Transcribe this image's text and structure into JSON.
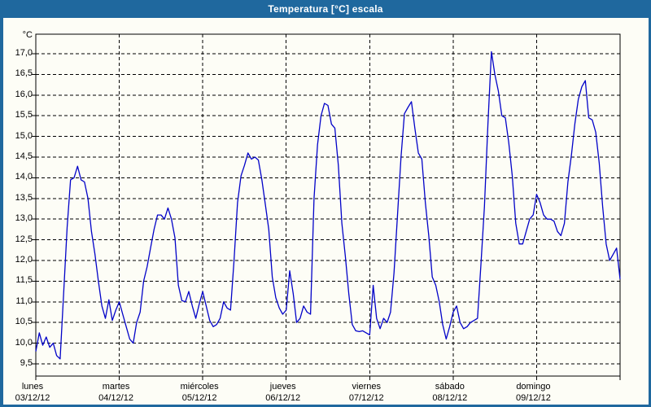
{
  "window": {
    "title": "Temperatura [°C] escala"
  },
  "chart_data": {
    "type": "line",
    "title": "Temperatura [°C] escala",
    "ylabel": "°C",
    "grid": true,
    "legend_position": "none",
    "y_axis": {
      "min": 9.5,
      "max": 17.0,
      "step": 0.5,
      "tick_labels": [
        "17,0",
        "16,5",
        "16,0",
        "15,5",
        "15,0",
        "14,5",
        "14,0",
        "13,5",
        "13,0",
        "12,5",
        "12,0",
        "11,5",
        "11,0",
        "10,5",
        "10,0",
        "9,5"
      ]
    },
    "x_axis": {
      "days": [
        {
          "name": "lunes",
          "date": "03/12/12"
        },
        {
          "name": "martes",
          "date": "04/12/12"
        },
        {
          "name": "miércoles",
          "date": "05/12/12"
        },
        {
          "name": "jueves",
          "date": "06/12/12"
        },
        {
          "name": "viernes",
          "date": "07/12/12"
        },
        {
          "name": "sábado",
          "date": "08/12/12"
        },
        {
          "name": "domingo",
          "date": "09/12/12"
        }
      ]
    },
    "series": [
      {
        "name": "Temperatura",
        "unit": "°C",
        "color": "#0202c8",
        "sampling": "hourly",
        "values": [
          9.8,
          10.25,
          9.95,
          10.15,
          9.9,
          10.0,
          9.7,
          9.62,
          11.2,
          12.8,
          13.95,
          14.0,
          14.28,
          13.95,
          13.9,
          13.5,
          12.7,
          12.15,
          11.5,
          10.9,
          10.6,
          11.05,
          10.55,
          10.8,
          11.0,
          10.7,
          10.4,
          10.1,
          10.0,
          10.5,
          10.75,
          11.5,
          11.85,
          12.3,
          12.75,
          13.1,
          13.1,
          13.0,
          13.27,
          13.0,
          12.55,
          11.4,
          11.03,
          11.0,
          11.25,
          10.9,
          10.6,
          10.95,
          11.25,
          10.9,
          10.55,
          10.4,
          10.45,
          10.6,
          11.0,
          10.85,
          10.8,
          12.0,
          13.4,
          14.05,
          14.3,
          14.6,
          14.45,
          14.5,
          14.43,
          13.95,
          13.35,
          12.75,
          11.6,
          11.1,
          10.85,
          10.7,
          10.8,
          11.75,
          11.2,
          10.5,
          10.6,
          10.9,
          10.75,
          10.7,
          13.5,
          14.8,
          15.5,
          15.8,
          15.75,
          15.3,
          15.2,
          14.3,
          12.9,
          12.1,
          11.2,
          10.45,
          10.3,
          10.28,
          10.3,
          10.25,
          10.2,
          11.4,
          10.6,
          10.35,
          10.6,
          10.5,
          10.75,
          11.7,
          13.1,
          14.5,
          15.55,
          15.7,
          15.84,
          15.2,
          14.6,
          14.45,
          13.4,
          12.6,
          11.6,
          11.4,
          11.0,
          10.45,
          10.1,
          10.4,
          10.75,
          10.9,
          10.5,
          10.35,
          10.4,
          10.5,
          10.55,
          10.6,
          11.9,
          13.3,
          15.3,
          17.05,
          16.5,
          16.1,
          15.5,
          15.45,
          14.85,
          14.05,
          12.9,
          12.4,
          12.4,
          12.7,
          13.0,
          13.1,
          13.6,
          13.4,
          13.1,
          13.0,
          13.0,
          12.95,
          12.7,
          12.6,
          12.9,
          13.9,
          14.55,
          15.3,
          15.9,
          16.2,
          16.35,
          15.45,
          15.4,
          15.1,
          14.35,
          13.3,
          12.4,
          12.0,
          12.15,
          12.3,
          11.55
        ]
      }
    ]
  }
}
